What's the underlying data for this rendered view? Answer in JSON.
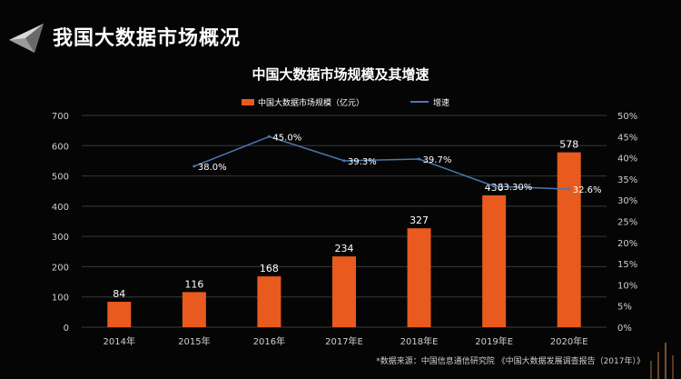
{
  "header": {
    "title": "我国大数据市场概况"
  },
  "colors": {
    "bar": "#e85a1e",
    "line": "#4a79b0",
    "text": "#ffffff",
    "axis_text": "#cfcfcf",
    "grid": "#3a3a3a"
  },
  "chart_data": {
    "type": "bar",
    "title": "中国大数据市场规模及其增速",
    "categories": [
      "2014年",
      "2015年",
      "2016年",
      "2017年E",
      "2018年E",
      "2019年E",
      "2020年E"
    ],
    "series": [
      {
        "name": "中国大数据市场规模（亿元）",
        "type": "bar",
        "axis": "left",
        "values": [
          84,
          116,
          168,
          234,
          327,
          436,
          578
        ],
        "labels": [
          "84",
          "116",
          "168",
          "234",
          "327",
          "436",
          "578"
        ]
      },
      {
        "name": "增速",
        "type": "line",
        "axis": "right",
        "values": [
          null,
          38.0,
          45.0,
          39.3,
          39.7,
          33.3,
          32.6
        ],
        "labels": [
          "",
          "38.0%",
          "45.0%",
          "39.3%",
          "39.7%",
          "33.30%",
          "32.6%"
        ]
      }
    ],
    "y_left": {
      "range": [
        0,
        700
      ],
      "ticks": [
        "0",
        "100",
        "200",
        "300",
        "400",
        "500",
        "600",
        "700"
      ]
    },
    "y_right": {
      "range": [
        0,
        50
      ],
      "ticks": [
        "0%",
        "5%",
        "10%",
        "15%",
        "20%",
        "25%",
        "30%",
        "35%",
        "40%",
        "45%",
        "50%"
      ]
    },
    "grid": true,
    "legend": "top-center"
  },
  "source": "*数据来源：中国信息通信研究院 《中国大数据发展调查报告（2017年）》"
}
